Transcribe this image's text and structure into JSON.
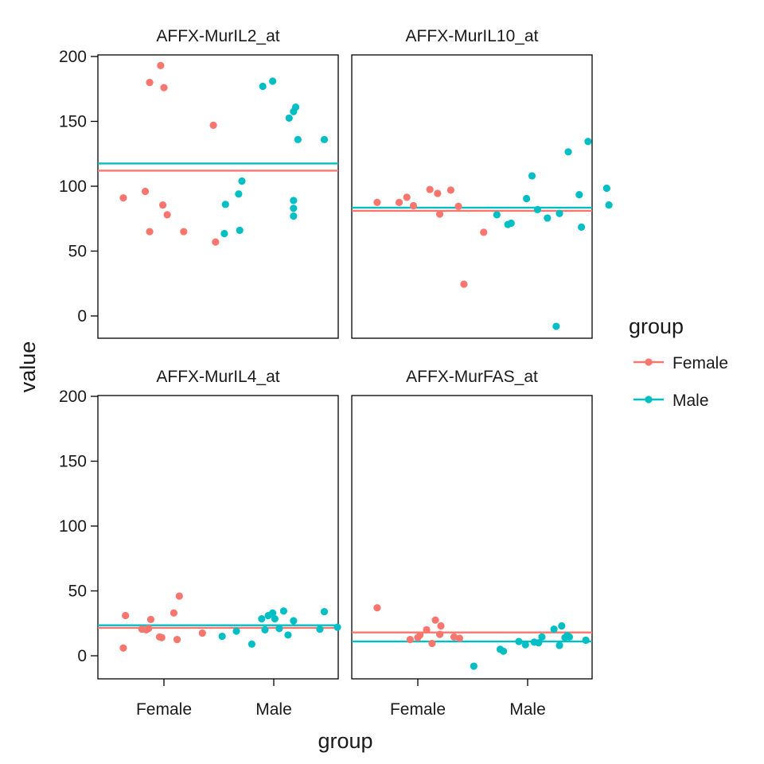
{
  "chart_data": {
    "type": "scatter",
    "xlabel": "group",
    "ylabel": "value",
    "x_categories": [
      "Female",
      "Male"
    ],
    "y_ticks": [
      0,
      50,
      100,
      150,
      200
    ],
    "ylim": [
      -18,
      200
    ],
    "grid": false,
    "legend": {
      "title": "group",
      "placement": "right",
      "entries": [
        {
          "name": "Female",
          "color": "#F8766D"
        },
        {
          "name": "Male",
          "color": "#00BFC4"
        }
      ]
    },
    "panels": [
      {
        "title": "AFFX-MurIL2_at",
        "mean_lines": {
          "Female": 112,
          "Male": 117.5
        },
        "series": [
          {
            "name": "Female",
            "points": [
              {
                "x": 0.63,
                "y": 91
              },
              {
                "x": 0.83,
                "y": 96
              },
              {
                "x": 0.87,
                "y": 65
              },
              {
                "x": 0.87,
                "y": 180
              },
              {
                "x": 0.97,
                "y": 193
              },
              {
                "x": 0.99,
                "y": 85.5
              },
              {
                "x": 1.0,
                "y": 176
              },
              {
                "x": 1.03,
                "y": 78
              },
              {
                "x": 1.18,
                "y": 65
              },
              {
                "x": 1.45,
                "y": 147
              },
              {
                "x": 1.47,
                "y": 57
              }
            ]
          },
          {
            "name": "Male",
            "points": [
              {
                "x": 1.55,
                "y": 63.5
              },
              {
                "x": 1.56,
                "y": 86
              },
              {
                "x": 1.68,
                "y": 94
              },
              {
                "x": 1.69,
                "y": 66
              },
              {
                "x": 1.71,
                "y": 104
              },
              {
                "x": 1.9,
                "y": 177
              },
              {
                "x": 1.99,
                "y": 181
              },
              {
                "x": 2.14,
                "y": 152.5
              },
              {
                "x": 2.18,
                "y": 157.5
              },
              {
                "x": 2.2,
                "y": 161
              },
              {
                "x": 2.18,
                "y": 89
              },
              {
                "x": 2.18,
                "y": 83
              },
              {
                "x": 2.18,
                "y": 77
              },
              {
                "x": 2.22,
                "y": 136
              },
              {
                "x": 2.46,
                "y": 136
              }
            ]
          }
        ]
      },
      {
        "title": "AFFX-MurIL10_at",
        "mean_lines": {
          "Female": 81,
          "Male": 83.5
        },
        "series": [
          {
            "name": "Female",
            "points": [
              {
                "x": 0.63,
                "y": 87.5
              },
              {
                "x": 0.83,
                "y": 87.5
              },
              {
                "x": 0.9,
                "y": 91.5
              },
              {
                "x": 0.96,
                "y": 85
              },
              {
                "x": 1.11,
                "y": 97.5
              },
              {
                "x": 1.18,
                "y": 94.5
              },
              {
                "x": 1.2,
                "y": 78.5
              },
              {
                "x": 1.3,
                "y": 97
              },
              {
                "x": 1.37,
                "y": 84.5
              },
              {
                "x": 1.42,
                "y": 24.5
              },
              {
                "x": 1.6,
                "y": 64.5
              }
            ]
          },
          {
            "name": "Male",
            "points": [
              {
                "x": 1.72,
                "y": 78
              },
              {
                "x": 1.82,
                "y": 70.5
              },
              {
                "x": 1.85,
                "y": 71.5
              },
              {
                "x": 1.99,
                "y": 90.5
              },
              {
                "x": 2.04,
                "y": 108
              },
              {
                "x": 2.09,
                "y": 82
              },
              {
                "x": 2.18,
                "y": 75.5
              },
              {
                "x": 2.29,
                "y": 79
              },
              {
                "x": 2.26,
                "y": -8
              },
              {
                "x": 2.37,
                "y": 126.5
              },
              {
                "x": 2.47,
                "y": 93.5
              },
              {
                "x": 2.49,
                "y": 68.5
              },
              {
                "x": 2.55,
                "y": 134.5
              },
              {
                "x": 2.72,
                "y": 98.5
              },
              {
                "x": 2.74,
                "y": 85.5
              }
            ]
          }
        ]
      },
      {
        "title": "AFFX-MurIL4_at",
        "mean_lines": {
          "Female": 21.5,
          "Male": 23.5
        },
        "series": [
          {
            "name": "Female",
            "points": [
              {
                "x": 0.63,
                "y": 6
              },
              {
                "x": 0.65,
                "y": 31
              },
              {
                "x": 0.8,
                "y": 20.5
              },
              {
                "x": 0.84,
                "y": 20
              },
              {
                "x": 0.86,
                "y": 21
              },
              {
                "x": 0.88,
                "y": 28
              },
              {
                "x": 0.96,
                "y": 14.5
              },
              {
                "x": 0.98,
                "y": 14
              },
              {
                "x": 1.09,
                "y": 33
              },
              {
                "x": 1.12,
                "y": 12.5
              },
              {
                "x": 1.14,
                "y": 46
              },
              {
                "x": 1.35,
                "y": 17.5
              }
            ]
          },
          {
            "name": "Male",
            "points": [
              {
                "x": 1.53,
                "y": 15
              },
              {
                "x": 1.66,
                "y": 19
              },
              {
                "x": 1.8,
                "y": 9
              },
              {
                "x": 1.89,
                "y": 28.5
              },
              {
                "x": 1.92,
                "y": 20
              },
              {
                "x": 1.95,
                "y": 31
              },
              {
                "x": 1.99,
                "y": 33
              },
              {
                "x": 2.01,
                "y": 28.5
              },
              {
                "x": 2.05,
                "y": 21
              },
              {
                "x": 2.09,
                "y": 34.5
              },
              {
                "x": 2.13,
                "y": 16
              },
              {
                "x": 2.18,
                "y": 27
              },
              {
                "x": 2.42,
                "y": 20.5
              },
              {
                "x": 2.46,
                "y": 34
              },
              {
                "x": 2.58,
                "y": 22
              }
            ]
          }
        ]
      },
      {
        "title": "AFFX-MurFAS_at",
        "mean_lines": {
          "Female": 18,
          "Male": 11
        },
        "series": [
          {
            "name": "Female",
            "points": [
              {
                "x": 0.63,
                "y": 37
              },
              {
                "x": 0.93,
                "y": 12.5
              },
              {
                "x": 1.0,
                "y": 14
              },
              {
                "x": 1.02,
                "y": 16
              },
              {
                "x": 1.08,
                "y": 20
              },
              {
                "x": 1.13,
                "y": 9.5
              },
              {
                "x": 1.16,
                "y": 27.5
              },
              {
                "x": 1.2,
                "y": 16.5
              },
              {
                "x": 1.21,
                "y": 23
              },
              {
                "x": 1.33,
                "y": 14.5
              },
              {
                "x": 1.38,
                "y": 13.5
              }
            ]
          },
          {
            "name": "Male",
            "points": [
              {
                "x": 1.51,
                "y": -8
              },
              {
                "x": 1.75,
                "y": 5
              },
              {
                "x": 1.78,
                "y": 3.5
              },
              {
                "x": 1.92,
                "y": 11
              },
              {
                "x": 1.98,
                "y": 8.5
              },
              {
                "x": 2.06,
                "y": 10.5
              },
              {
                "x": 2.1,
                "y": 10
              },
              {
                "x": 2.13,
                "y": 14.5
              },
              {
                "x": 2.24,
                "y": 20.5
              },
              {
                "x": 2.29,
                "y": 8
              },
              {
                "x": 2.31,
                "y": 23
              },
              {
                "x": 2.34,
                "y": 14
              },
              {
                "x": 2.36,
                "y": 15.5
              },
              {
                "x": 2.38,
                "y": 14.5
              },
              {
                "x": 2.53,
                "y": 12
              }
            ]
          }
        ]
      }
    ]
  }
}
